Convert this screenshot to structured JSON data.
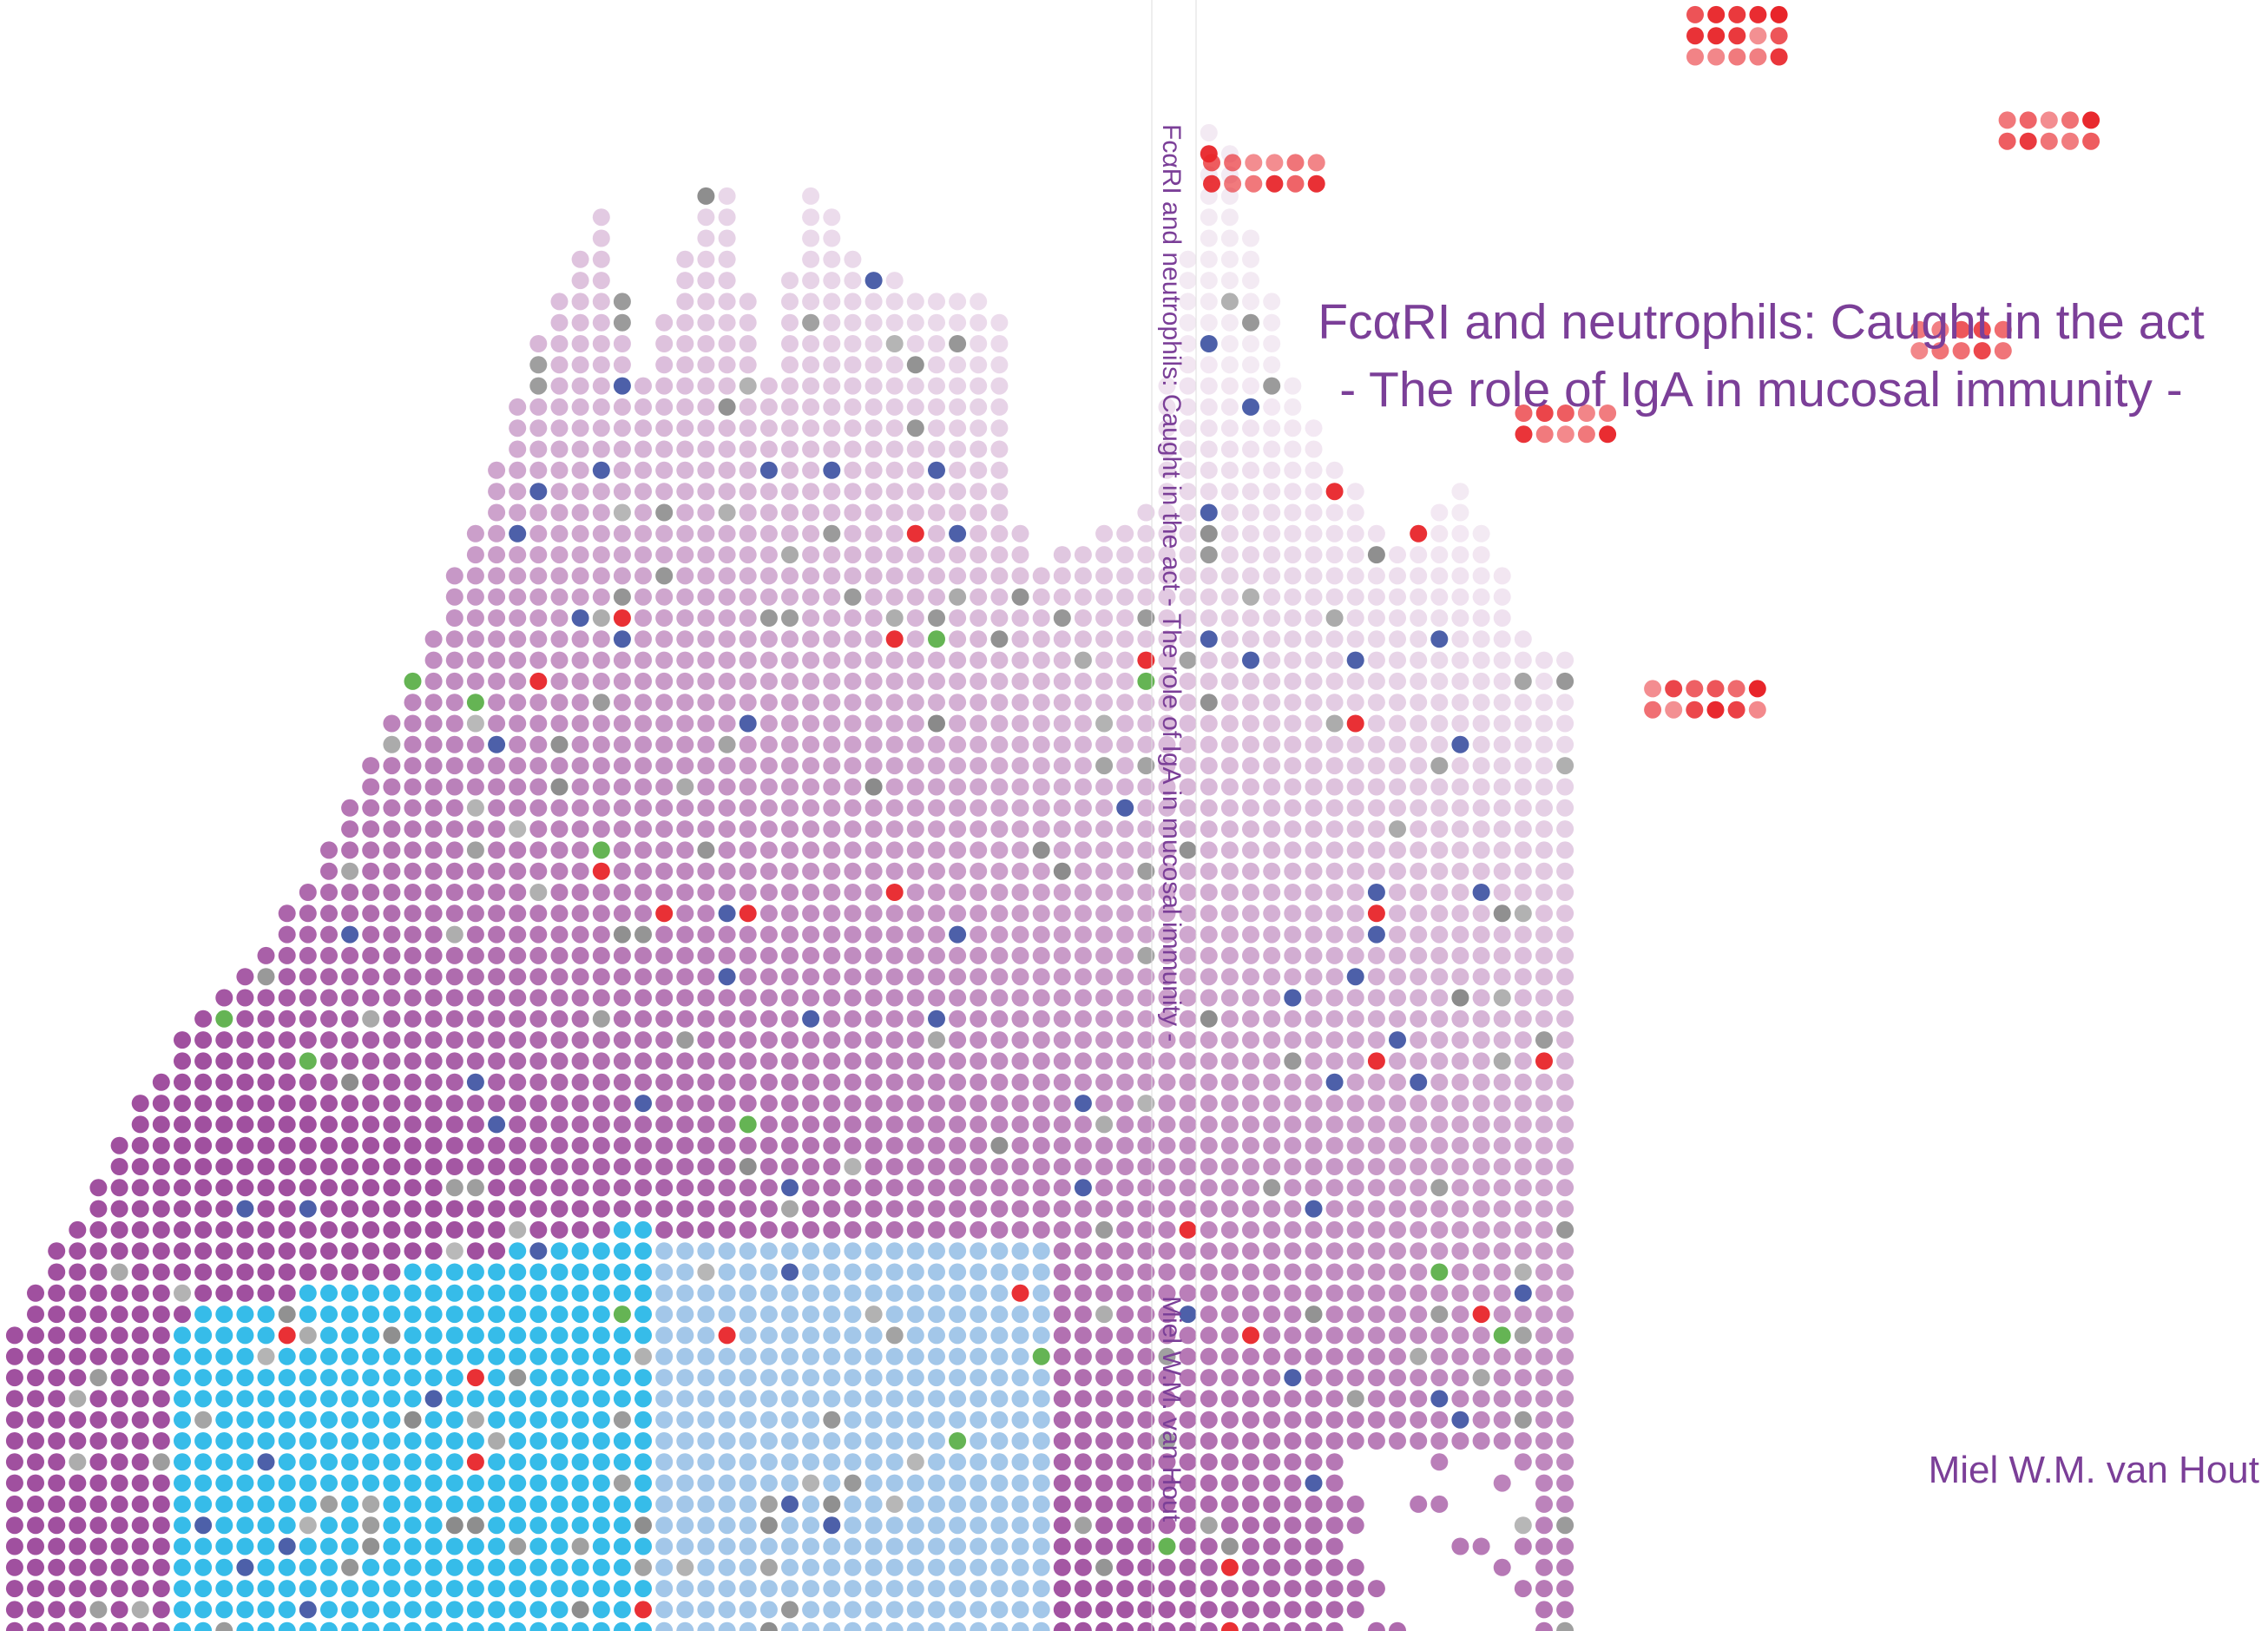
{
  "front": {
    "title": "FcαRI and neutrophils: Caught in the act",
    "subtitle": "- The role of IgA in mucosal immunity -",
    "author": "Miel W.M. van Hout"
  },
  "spine": {
    "title": "FcαRI and neutrophils: Caught in the act - The role of IgA in mucosal immunity -",
    "author": "Miel W.M. van Hout"
  }
}
